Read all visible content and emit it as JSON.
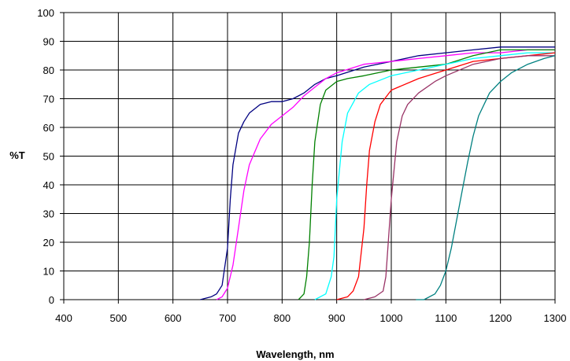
{
  "chart_data": {
    "type": "line",
    "xlabel": "Wavelength, nm",
    "ylabel": "%T",
    "xlim": [
      400,
      1300
    ],
    "ylim": [
      0,
      100
    ],
    "xticks": [
      400,
      500,
      600,
      700,
      800,
      900,
      1000,
      1100,
      1200,
      1300
    ],
    "yticks": [
      0,
      10,
      20,
      30,
      40,
      50,
      60,
      70,
      80,
      90,
      100
    ],
    "grid": true,
    "legend": "none",
    "series": [
      {
        "color": "#000080",
        "x": [
          650,
          670,
          680,
          690,
          700,
          705,
          710,
          720,
          730,
          740,
          760,
          780,
          800,
          820,
          840,
          860,
          880,
          900,
          950,
          1000,
          1050,
          1100,
          1150,
          1200,
          1250,
          1300
        ],
        "y": [
          0,
          1,
          2,
          5,
          18,
          35,
          47,
          58,
          62,
          65,
          68,
          69,
          69,
          70,
          72,
          75,
          77,
          78,
          81,
          83,
          85,
          86,
          87,
          88,
          88,
          88
        ]
      },
      {
        "color": "#ff00ff",
        "x": [
          680,
          690,
          700,
          710,
          720,
          730,
          740,
          760,
          780,
          800,
          820,
          840,
          860,
          880,
          900,
          950,
          1000,
          1050,
          1100,
          1150,
          1200,
          1250,
          1300
        ],
        "y": [
          0,
          1,
          4,
          12,
          25,
          38,
          47,
          56,
          61,
          64,
          67,
          71,
          74,
          77,
          79,
          82,
          83,
          84,
          85,
          86,
          86,
          87,
          87
        ]
      },
      {
        "color": "#008000",
        "x": [
          830,
          840,
          845,
          850,
          855,
          860,
          870,
          880,
          900,
          920,
          950,
          1000,
          1050,
          1100,
          1150,
          1200,
          1250,
          1300
        ],
        "y": [
          0,
          2,
          8,
          20,
          40,
          55,
          68,
          73,
          76,
          77,
          78,
          80,
          81,
          82,
          85,
          87,
          87,
          87
        ]
      },
      {
        "color": "#00ffff",
        "x": [
          860,
          880,
          890,
          895,
          900,
          910,
          920,
          940,
          960,
          1000,
          1050,
          1100,
          1150,
          1200,
          1250,
          1300
        ],
        "y": [
          0,
          2,
          8,
          15,
          35,
          55,
          65,
          72,
          75,
          78,
          80,
          82,
          84,
          85,
          86,
          86
        ]
      },
      {
        "color": "#ff0000",
        "x": [
          900,
          920,
          930,
          940,
          950,
          955,
          960,
          970,
          980,
          1000,
          1050,
          1100,
          1150,
          1200,
          1250,
          1300
        ],
        "y": [
          0,
          1,
          3,
          8,
          25,
          40,
          52,
          62,
          68,
          73,
          77,
          80,
          83,
          84,
          85,
          86
        ]
      },
      {
        "color": "#993366",
        "x": [
          950,
          970,
          985,
          990,
          1000,
          1010,
          1020,
          1030,
          1050,
          1080,
          1100,
          1150,
          1200,
          1250,
          1300
        ],
        "y": [
          0,
          1,
          3,
          8,
          35,
          55,
          64,
          68,
          72,
          76,
          78,
          82,
          84,
          85,
          85
        ]
      },
      {
        "color": "#008080",
        "x": [
          1045,
          1060,
          1080,
          1090,
          1100,
          1110,
          1120,
          1130,
          1140,
          1150,
          1160,
          1180,
          1200,
          1220,
          1250,
          1280,
          1300
        ],
        "y": [
          0,
          0,
          2,
          5,
          10,
          18,
          28,
          38,
          48,
          57,
          64,
          72,
          76,
          79,
          82,
          84,
          85
        ]
      }
    ]
  }
}
